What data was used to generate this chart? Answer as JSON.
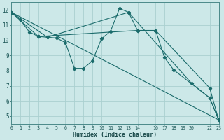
{
  "xlabel": "Humidex (Indice chaleur)",
  "bg_color": "#cce8e8",
  "grid_color": "#aad0d0",
  "line_color": "#1a6b6b",
  "xlim": [
    0,
    23
  ],
  "ylim": [
    4.5,
    12.5
  ],
  "xticks": [
    0,
    1,
    2,
    3,
    4,
    5,
    6,
    7,
    8,
    9,
    10,
    11,
    12,
    13,
    14,
    16,
    17,
    18,
    19,
    20,
    22,
    23
  ],
  "yticks": [
    5,
    6,
    7,
    8,
    9,
    10,
    11,
    12
  ],
  "series1_x": [
    0,
    1,
    2,
    3,
    4,
    5,
    6,
    7,
    8,
    9,
    10,
    11,
    12,
    13,
    14,
    16,
    17,
    18,
    22,
    23
  ],
  "series1_y": [
    11.85,
    11.35,
    10.55,
    10.25,
    10.2,
    10.15,
    9.85,
    8.15,
    8.15,
    8.65,
    10.1,
    10.6,
    12.1,
    11.85,
    10.65,
    10.65,
    8.85,
    8.05,
    6.2,
    4.75
  ],
  "series2_x": [
    0,
    3,
    14,
    16,
    22,
    23
  ],
  "series2_y": [
    11.85,
    10.25,
    10.65,
    10.65,
    6.85,
    4.75
  ],
  "series3_x": [
    0,
    23
  ],
  "series3_y": [
    11.85,
    4.75
  ],
  "series4_x": [
    0,
    4,
    13,
    20,
    22,
    23
  ],
  "series4_y": [
    11.85,
    10.2,
    11.85,
    7.15,
    6.2,
    4.75
  ]
}
